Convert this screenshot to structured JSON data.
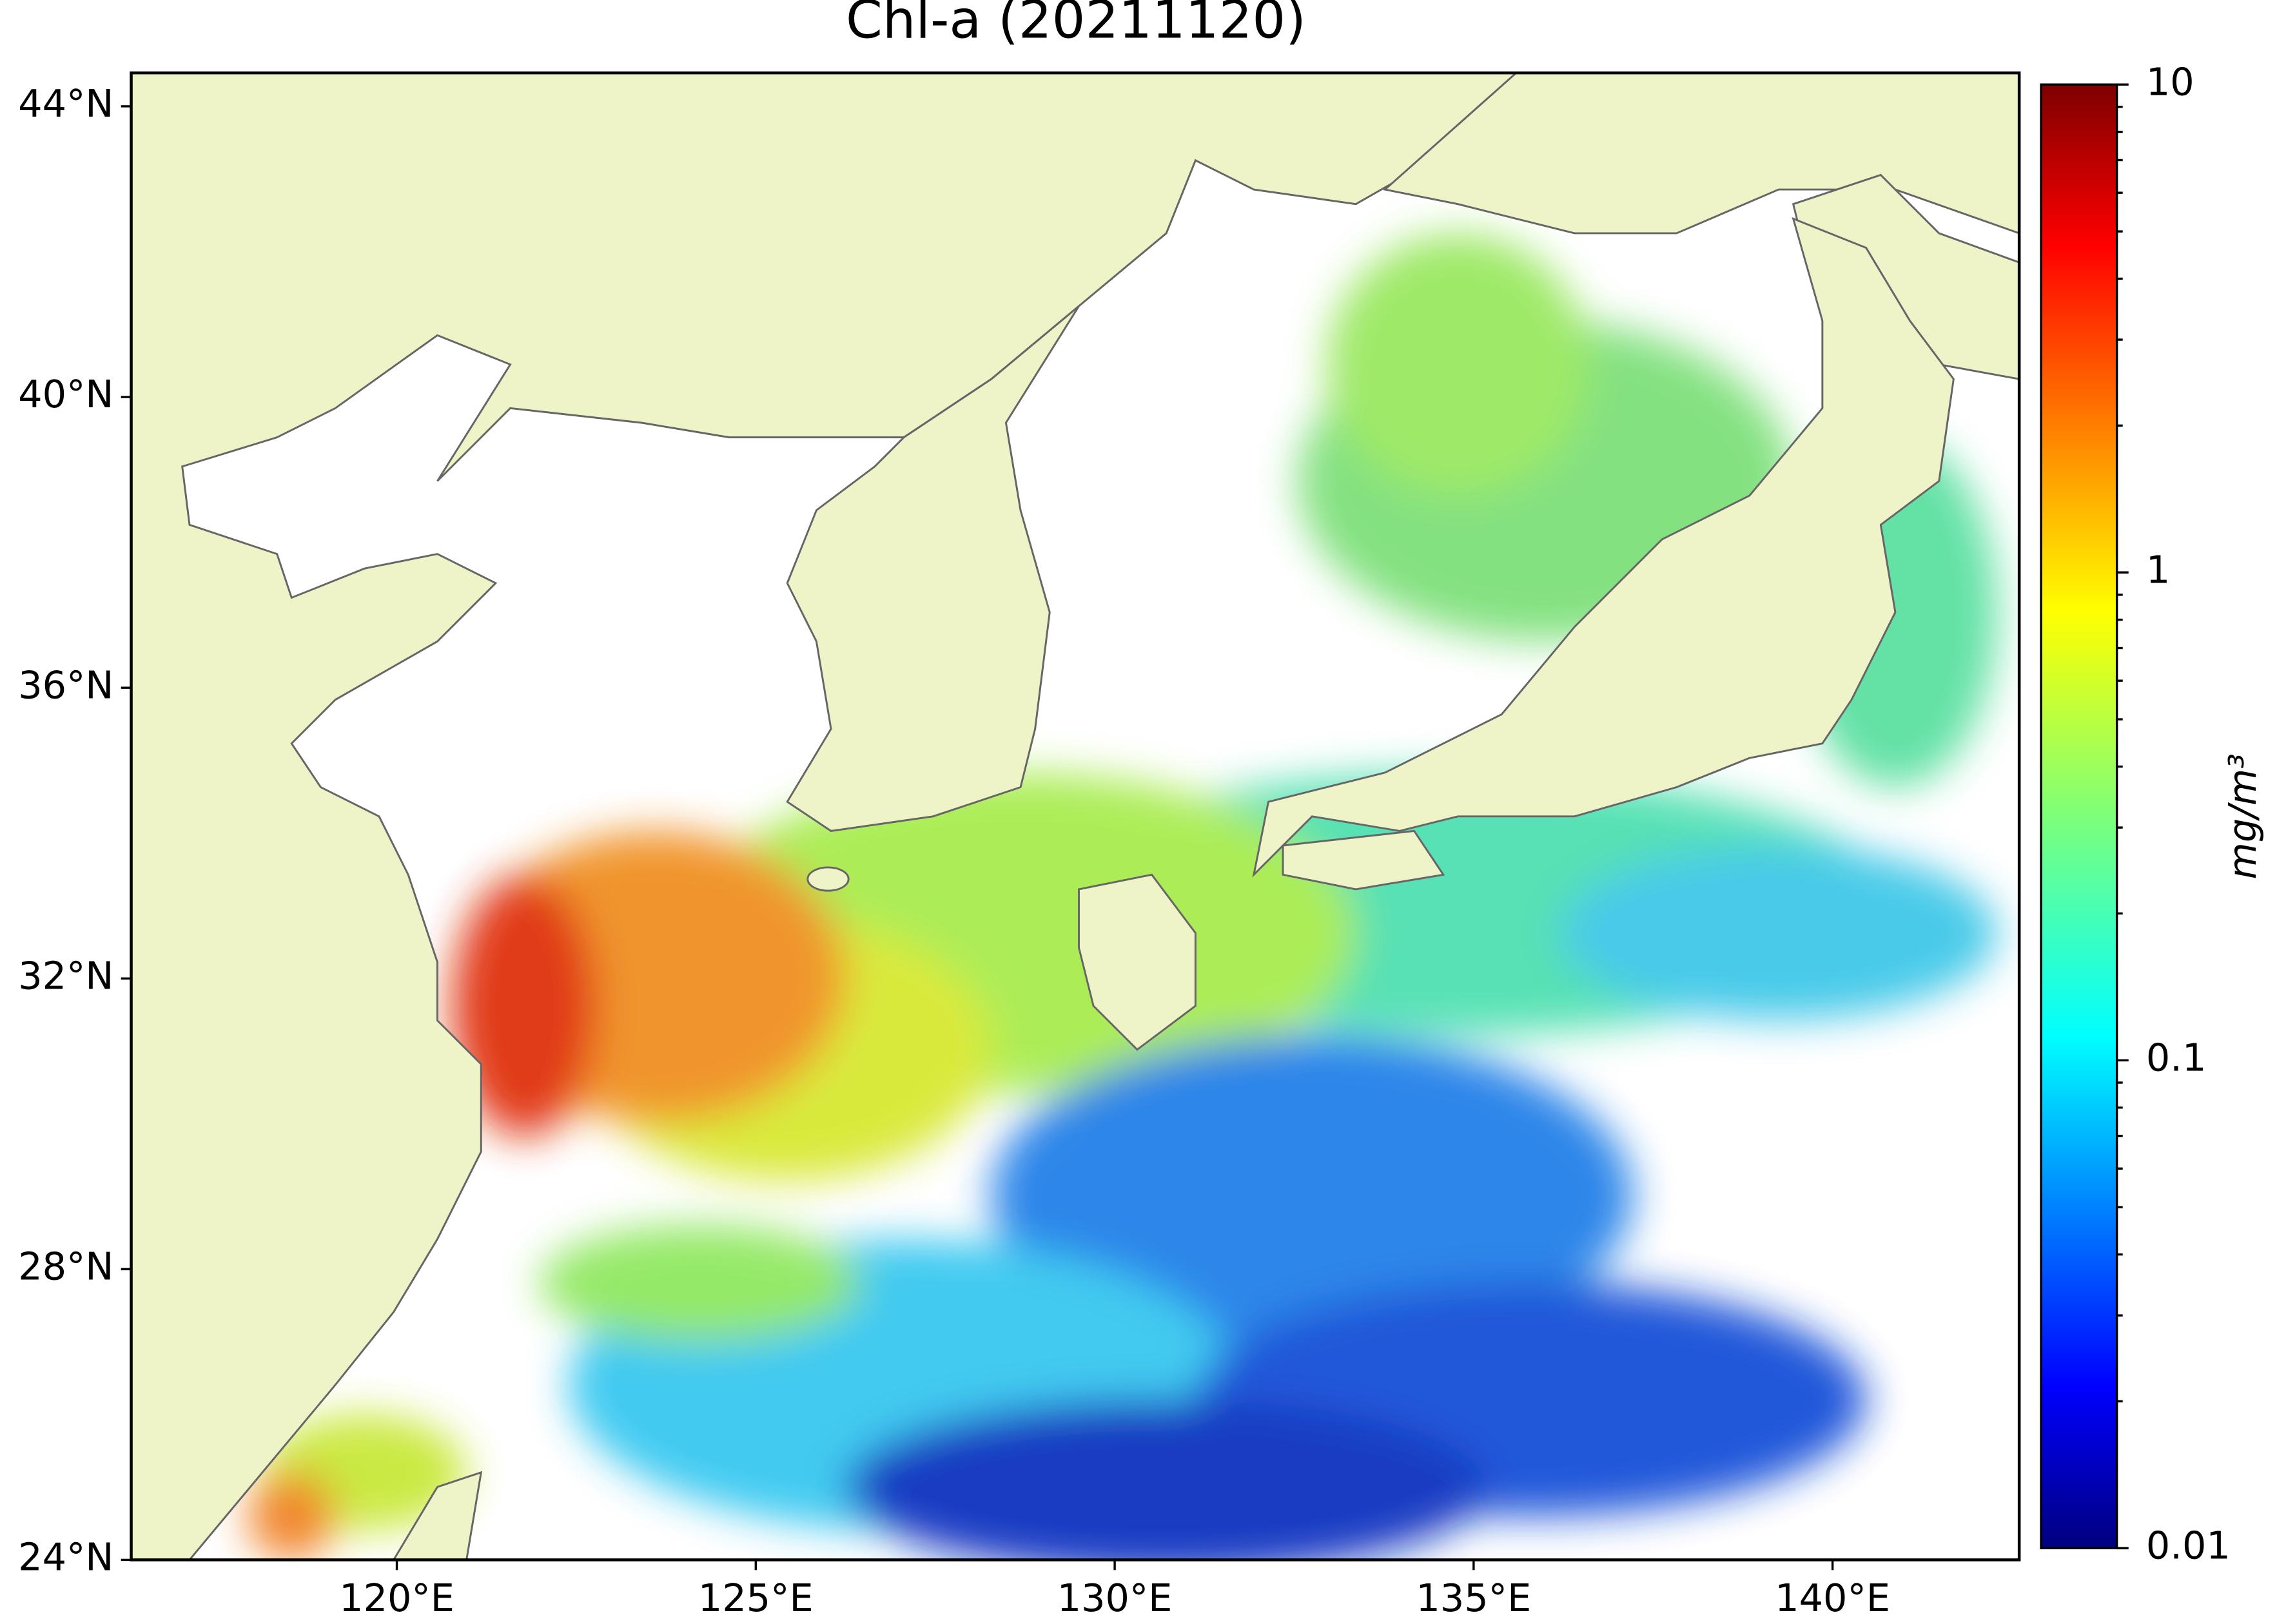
{
  "chart_data": {
    "type": "map",
    "title": "Chl-a (20211120)",
    "xlim": [
      116.3,
      142.6
    ],
    "ylim": [
      24,
      44.46
    ],
    "xticks": [
      {
        "value": 120,
        "label": "120°E"
      },
      {
        "value": 125,
        "label": "125°E"
      },
      {
        "value": 130,
        "label": "130°E"
      },
      {
        "value": 135,
        "label": "135°E"
      },
      {
        "value": 140,
        "label": "140°E"
      }
    ],
    "yticks": [
      {
        "value": 24,
        "label": "24°N"
      },
      {
        "value": 28,
        "label": "28°N"
      },
      {
        "value": 32,
        "label": "32°N"
      },
      {
        "value": 36,
        "label": "36°N"
      },
      {
        "value": 40,
        "label": "40°N"
      },
      {
        "value": 44,
        "label": "44°N"
      }
    ],
    "colorbar": {
      "label": "mg/m³",
      "scale": "log",
      "colormap": "jet",
      "clim": [
        0.01,
        10
      ],
      "ticks": [
        0.01,
        0.1,
        1,
        10
      ]
    }
  }
}
